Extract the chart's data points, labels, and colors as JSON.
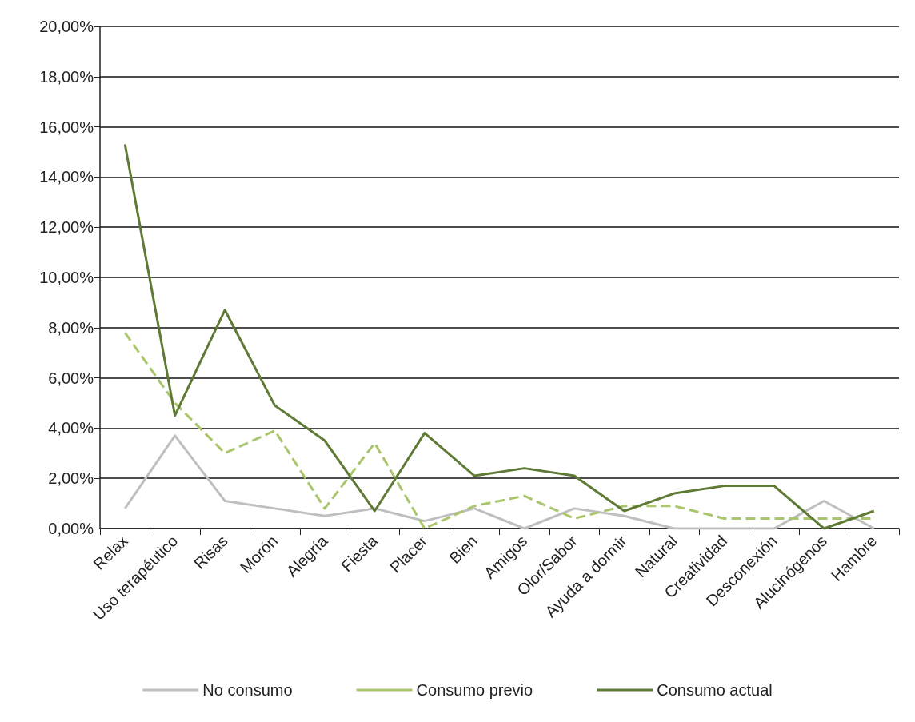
{
  "chart_data": {
    "type": "line",
    "categories": [
      "Relax",
      "Uso terapéutico",
      "Risas",
      "Morón",
      "Alegría",
      "Fiesta",
      "Placer",
      "Bien",
      "Amigos",
      "Olor/Sabor",
      "Ayuda a dormir",
      "Natural",
      "Creatividad",
      "Desconexión",
      "Alucinógenos",
      "Hambre"
    ],
    "series": [
      {
        "name": "No consumo",
        "color": "#bfbfbf",
        "line_style": "solid",
        "values": [
          0.8,
          3.7,
          1.1,
          0.8,
          0.5,
          0.8,
          0.3,
          0.8,
          0,
          0.8,
          0.5,
          0,
          0,
          0,
          1.1,
          0
        ]
      },
      {
        "name": "Consumo previo",
        "color": "#a9c66c",
        "line_style": "dashed",
        "values": [
          7.8,
          5.0,
          3.0,
          3.9,
          0.8,
          3.4,
          0,
          0.9,
          1.3,
          0.4,
          0.9,
          0.9,
          0.4,
          0.4,
          0.4,
          0.4
        ]
      },
      {
        "name": "Consumo actual",
        "color": "#5f7a35",
        "line_style": "solid",
        "values": [
          15.3,
          4.5,
          8.7,
          4.9,
          3.5,
          0.7,
          3.8,
          2.1,
          2.4,
          2.1,
          0.7,
          1.4,
          1.7,
          1.7,
          0,
          0.7
        ]
      }
    ],
    "ylim": [
      0,
      20
    ],
    "yticks": [
      {
        "value": 0,
        "label": "0,00%"
      },
      {
        "value": 2,
        "label": "2,00%"
      },
      {
        "value": 4,
        "label": "4,00%"
      },
      {
        "value": 6,
        "label": "6,00%"
      },
      {
        "value": 8,
        "label": "8,00%"
      },
      {
        "value": 10,
        "label": "10,00%"
      },
      {
        "value": 12,
        "label": "12,00%"
      },
      {
        "value": 14,
        "label": "14,00%"
      },
      {
        "value": 16,
        "label": "16,00%"
      },
      {
        "value": 18,
        "label": "18,00%"
      },
      {
        "value": 20,
        "label": "20,00%"
      }
    ],
    "grid": "y",
    "legend": "bottom",
    "marker": "none"
  }
}
